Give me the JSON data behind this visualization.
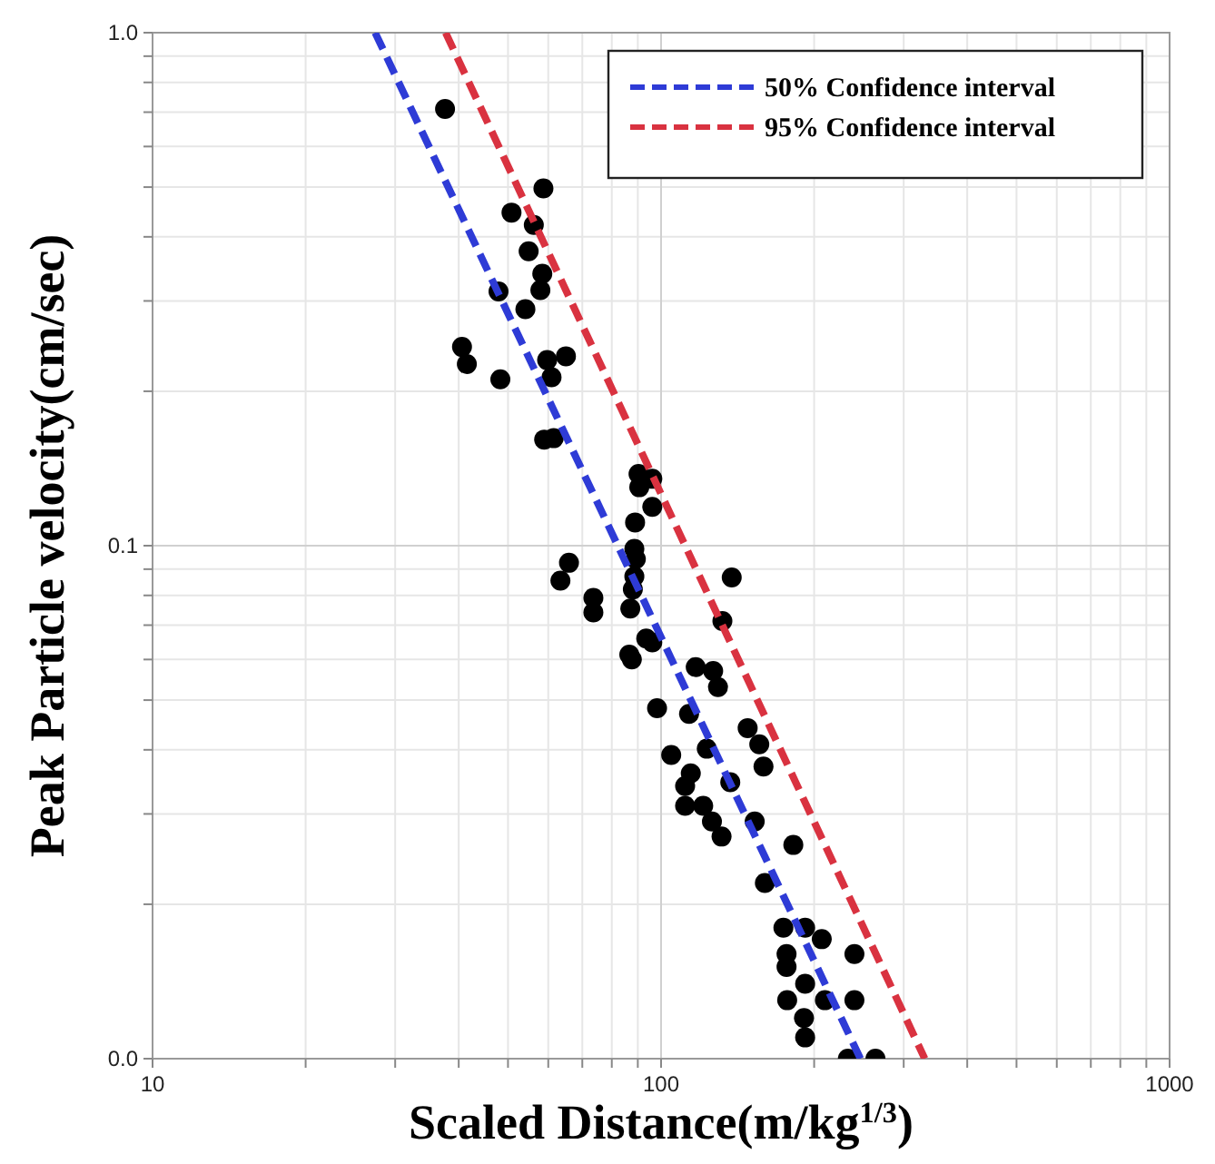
{
  "chart_data": {
    "type": "scatter",
    "xlabel": "Scaled Distance(m/kg$^{1/3}$)",
    "ylabel": "Peak Particle velocity(cm/sec)",
    "log": "xy",
    "xlim": [
      10,
      1000
    ],
    "ylim": [
      0.01,
      1
    ],
    "xticks": [
      10,
      100,
      1000
    ],
    "yticks": [
      {
        "value": 0.01,
        "label": "0.0"
      },
      {
        "value": 0.1,
        "label": "0.1"
      },
      {
        "value": 1,
        "label": "1.0"
      }
    ],
    "grid": true,
    "legend": "top right",
    "series": [
      {
        "color": "#000000",
        "marker": "circle",
        "x": [
          37.6,
          58.7,
          50.8,
          56.2,
          54.9,
          58.4,
          47.9,
          57.9,
          54.1,
          40.6,
          41.5,
          48.3,
          59.7,
          65.0,
          60.9,
          58.9,
          61.5,
          90.3,
          96.1,
          90.6,
          96.1,
          88.9,
          88.6,
          89.2,
          65.9,
          63.4,
          137.7,
          88.6,
          88.0,
          73.6,
          73.6,
          87.0,
          132,
          93.5,
          96.1,
          86.6,
          87.6,
          117,
          126.6,
          129.4,
          98.2,
          113.5,
          148,
          156,
          123,
          104.7,
          159,
          114.4,
          111.5,
          136.8,
          111.5,
          121,
          152.8,
          125.9,
          131.5,
          182,
          160,
          174,
          192,
          207,
          176.5,
          240,
          176.5,
          192,
          177,
          210,
          240,
          191,
          192,
          233,
          264
        ],
        "values": [
          0.71,
          0.497,
          0.446,
          0.422,
          0.375,
          0.339,
          0.313,
          0.315,
          0.289,
          0.244,
          0.226,
          0.211,
          0.23,
          0.234,
          0.213,
          0.161,
          0.162,
          0.138,
          0.135,
          0.13,
          0.119,
          0.111,
          0.0986,
          0.0942,
          0.0926,
          0.0855,
          0.0867,
          0.0871,
          0.0822,
          0.0791,
          0.0741,
          0.0754,
          0.0713,
          0.0659,
          0.0648,
          0.0613,
          0.06,
          0.058,
          0.057,
          0.053,
          0.0482,
          0.047,
          0.0441,
          0.041,
          0.0402,
          0.0391,
          0.0371,
          0.036,
          0.034,
          0.0346,
          0.0311,
          0.0311,
          0.029,
          0.029,
          0.0271,
          0.0261,
          0.022,
          0.018,
          0.018,
          0.0171,
          0.016,
          0.016,
          0.0151,
          0.014,
          0.013,
          0.013,
          0.013,
          0.012,
          0.011,
          0.01,
          0.01
        ]
      },
      {
        "type": "line",
        "name": "50% Confidence interval",
        "color": "#2e3bd6",
        "line_style": "dashed",
        "x": [
          27.4,
          246.6
        ],
        "values": [
          1,
          0.01
        ]
      },
      {
        "type": "line",
        "name": "95% Confidence interval",
        "color": "#d93240",
        "line_style": "dashed",
        "x": [
          37.7,
          330
        ],
        "values": [
          1,
          0.01
        ]
      }
    ]
  }
}
